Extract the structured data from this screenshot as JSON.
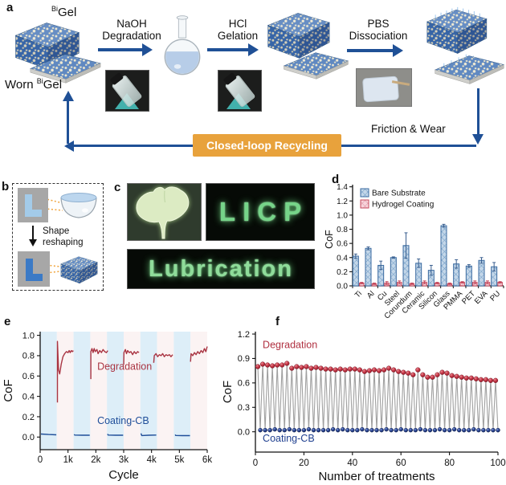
{
  "panel_labels": {
    "a": "a",
    "b": "b",
    "c": "c",
    "d": "d",
    "e": "e",
    "f": "f"
  },
  "panel_a": {
    "gel_sup": "Bi",
    "gel_base": "Gel",
    "worn_prefix": "Worn",
    "steps": {
      "s1a": "NaOH",
      "s1b": "Degradation",
      "s2a": "HCl",
      "s2b": "Gelation",
      "s3a": "PBS",
      "s3b": "Dissociation"
    },
    "banner": "Closed-loop Recycling",
    "friction": "Friction & Wear",
    "colors": {
      "arrow_blue": "#1f5096",
      "banner_orange": "#e8a23c",
      "gel_blue": "#3d6fb4",
      "gel_cream": "#e9e2c4"
    }
  },
  "panel_b": {
    "letter_top": "L",
    "letter_bottom": "L",
    "caption1": "Shape",
    "caption2": "reshaping",
    "colors": {
      "letter_top": "#a3cbe9",
      "letter_bottom": "#3b7ac6",
      "leader_orange": "#f0a43c"
    }
  },
  "panel_c": {
    "licp": "LICP",
    "lubrication": "Lubrication",
    "glow_green": "#8fdc9a"
  },
  "chart_data": [
    {
      "id": "d",
      "type": "bar",
      "ylabel": "CoF",
      "ylim": [
        0,
        1.4
      ],
      "yticks": [
        0,
        0.2,
        0.4,
        0.6,
        0.8,
        1.0,
        1.2,
        1.4
      ],
      "categories": [
        "Ti",
        "Al",
        "Cu",
        "Steel",
        "Corundum",
        "Ceramic",
        "Silicon",
        "Glass",
        "PMMA",
        "PET",
        "EVA",
        "PU"
      ],
      "series": [
        {
          "name": "Bare Substrate",
          "color": "#c3d6e8",
          "edge": "#3a6aa0",
          "err_color": "#3a5f8f",
          "values": [
            0.42,
            0.53,
            0.29,
            0.4,
            0.57,
            0.32,
            0.22,
            0.85,
            0.31,
            0.28,
            0.36,
            0.27
          ],
          "errors": [
            0.03,
            0.02,
            0.06,
            0.01,
            0.18,
            0.06,
            0.07,
            0.02,
            0.06,
            0.02,
            0.04,
            0.06
          ]
        },
        {
          "name": "Hydrogel Coating",
          "color": "#f7d3da",
          "edge": "#c4485c",
          "err_color": "#c4485c",
          "values": [
            0.04,
            0.03,
            0.04,
            0.05,
            0.03,
            0.05,
            0.04,
            0.03,
            0.05,
            0.05,
            0.05,
            0.05
          ],
          "errors": [
            0.01,
            0.01,
            0.02,
            0.02,
            0.01,
            0.02,
            0.01,
            0.01,
            0.01,
            0.02,
            0.02,
            0.01
          ]
        }
      ],
      "legend_position": "top-left",
      "grid": false
    },
    {
      "id": "e",
      "type": "line",
      "xlabel": "Cycle",
      "ylabel": "CoF",
      "xlim": [
        0,
        6000
      ],
      "ylim": [
        -0.12,
        1.04
      ],
      "xticks": [
        {
          "v": 0,
          "label": "0"
        },
        {
          "v": 1000,
          "label": "1k"
        },
        {
          "v": 2000,
          "label": "2k"
        },
        {
          "v": 3000,
          "label": "3k"
        },
        {
          "v": 4000,
          "label": "4k"
        },
        {
          "v": 5000,
          "label": "5k"
        },
        {
          "v": 6000,
          "label": "6k"
        }
      ],
      "yticks": [
        0,
        0.2,
        0.4,
        0.6,
        0.8,
        1.0
      ],
      "bands": {
        "period": 600,
        "colors": [
          "#ddeef8",
          "#fbf3f3"
        ]
      },
      "series": [
        {
          "name": "Degradation",
          "color": "#a93442",
          "segments": [
            [
              [
                620,
                0.34
              ],
              [
                620,
                0.94
              ],
              [
                640,
                0.8
              ],
              [
                660,
                0.66
              ],
              [
                700,
                0.62
              ],
              [
                760,
                0.72
              ],
              [
                820,
                0.79
              ],
              [
                880,
                0.82
              ],
              [
                940,
                0.84
              ],
              [
                1000,
                0.83
              ],
              [
                1040,
                0.85
              ],
              [
                1080,
                0.83
              ],
              [
                1120,
                0.85
              ],
              [
                1160,
                0.84
              ],
              [
                1190,
                0.85
              ]
            ],
            [
              [
                1820,
                0.57
              ],
              [
                1820,
                0.84
              ],
              [
                1860,
                0.87
              ],
              [
                1900,
                0.83
              ],
              [
                1940,
                0.87
              ],
              [
                1980,
                0.84
              ],
              [
                2040,
                0.86
              ],
              [
                2080,
                0.82
              ],
              [
                2140,
                0.85
              ],
              [
                2200,
                0.83
              ],
              [
                2260,
                0.86
              ],
              [
                2320,
                0.84
              ],
              [
                2380,
                0.83
              ],
              [
                2430,
                0.85
              ]
            ],
            [
              [
                3000,
                0.71
              ],
              [
                3010,
                0.83
              ],
              [
                3060,
                0.86
              ],
              [
                3100,
                0.82
              ],
              [
                3140,
                0.85
              ],
              [
                3200,
                0.83
              ],
              [
                3260,
                0.84
              ],
              [
                3320,
                0.81
              ],
              [
                3380,
                0.84
              ],
              [
                3440,
                0.82
              ],
              [
                3500,
                0.84
              ],
              [
                3550,
                0.83
              ]
            ],
            [
              [
                4080,
                0.73
              ],
              [
                4100,
                0.8
              ],
              [
                4160,
                0.82
              ],
              [
                4220,
                0.79
              ],
              [
                4280,
                0.81
              ],
              [
                4340,
                0.8
              ],
              [
                4400,
                0.82
              ],
              [
                4460,
                0.79
              ],
              [
                4520,
                0.81
              ],
              [
                4580,
                0.8
              ],
              [
                4640,
                0.81
              ],
              [
                4700,
                0.79
              ],
              [
                4760,
                0.81
              ]
            ],
            [
              [
                5400,
                0.74
              ],
              [
                5420,
                0.82
              ],
              [
                5480,
                0.8
              ],
              [
                5540,
                0.83
              ],
              [
                5600,
                0.81
              ],
              [
                5660,
                0.84
              ],
              [
                5720,
                0.82
              ],
              [
                5780,
                0.85
              ],
              [
                5840,
                0.83
              ],
              [
                5900,
                0.87
              ],
              [
                5950,
                0.84
              ],
              [
                6000,
                0.89
              ]
            ]
          ]
        },
        {
          "name": "Coating-CB",
          "color": "#1f4e99",
          "segments": [
            [
              [
                30,
                0.03
              ],
              [
                300,
                0.025
              ],
              [
                580,
                0.022
              ]
            ],
            [
              [
                1220,
                0.026
              ],
              [
                1240,
                0.02
              ],
              [
                1500,
                0.018
              ],
              [
                1780,
                0.018
              ]
            ],
            [
              [
                2420,
                0.03
              ],
              [
                2440,
                0.02
              ],
              [
                2700,
                0.018
              ],
              [
                2980,
                0.018
              ]
            ],
            [
              [
                3620,
                0.036
              ],
              [
                3650,
                0.015
              ],
              [
                3900,
                0.018
              ],
              [
                4170,
                0.02
              ]
            ],
            [
              [
                4850,
                0.024
              ],
              [
                4870,
                0.016
              ],
              [
                5100,
                0.014
              ],
              [
                5380,
                0.014
              ]
            ]
          ]
        }
      ],
      "annotations": [
        {
          "text": "Degradation",
          "color": "#a93442",
          "x": 2050,
          "y": 0.66
        },
        {
          "text": "Coating-CB",
          "color": "#1f4e99",
          "x": 2050,
          "y": 0.13
        }
      ]
    },
    {
      "id": "f",
      "type": "scatter-line",
      "xlabel": "Number of treatments",
      "ylabel": "CoF",
      "xlim": [
        0,
        100
      ],
      "ylim": [
        -0.25,
        1.23
      ],
      "xticks": [
        {
          "v": 0,
          "label": "0"
        },
        {
          "v": 20,
          "label": "20"
        },
        {
          "v": 40,
          "label": "40"
        },
        {
          "v": 60,
          "label": "60"
        },
        {
          "v": 80,
          "label": "80"
        },
        {
          "v": 100,
          "label": "100"
        }
      ],
      "yticks": [
        0,
        0.3,
        0.6,
        0.9,
        1.2
      ],
      "line_color": "#a0a0a0",
      "series": [
        {
          "name": "Degradation",
          "color": "#c03040",
          "x": [
            1,
            3,
            5,
            7,
            9,
            11,
            13,
            15,
            17,
            19,
            21,
            23,
            25,
            27,
            29,
            31,
            33,
            35,
            37,
            39,
            41,
            43,
            45,
            47,
            49,
            51,
            53,
            55,
            57,
            59,
            61,
            63,
            65,
            67,
            69,
            71,
            73,
            75,
            77,
            79,
            81,
            83,
            85,
            87,
            89,
            91,
            93,
            95,
            97,
            99
          ],
          "values": [
            0.8,
            0.83,
            0.82,
            0.81,
            0.82,
            0.82,
            0.84,
            0.78,
            0.8,
            0.79,
            0.8,
            0.78,
            0.79,
            0.78,
            0.77,
            0.77,
            0.76,
            0.77,
            0.76,
            0.77,
            0.77,
            0.76,
            0.74,
            0.75,
            0.76,
            0.75,
            0.76,
            0.78,
            0.76,
            0.74,
            0.73,
            0.72,
            0.7,
            0.76,
            0.7,
            0.67,
            0.67,
            0.7,
            0.73,
            0.72,
            0.69,
            0.68,
            0.67,
            0.66,
            0.66,
            0.65,
            0.64,
            0.64,
            0.63,
            0.63
          ]
        },
        {
          "name": "Coating-CB",
          "color": "#1e3f8f",
          "x": [
            2,
            4,
            6,
            8,
            10,
            12,
            14,
            16,
            18,
            20,
            22,
            24,
            26,
            28,
            30,
            32,
            34,
            36,
            38,
            40,
            42,
            44,
            46,
            48,
            50,
            52,
            54,
            56,
            58,
            60,
            62,
            64,
            66,
            68,
            70,
            72,
            74,
            76,
            78,
            80,
            82,
            84,
            86,
            88,
            90,
            92,
            94,
            96,
            98,
            100
          ],
          "values": [
            0.02,
            0.02,
            0.02,
            0.03,
            0.02,
            0.02,
            0.03,
            0.02,
            0.02,
            0.02,
            0.03,
            0.02,
            0.02,
            0.02,
            0.02,
            0.03,
            0.02,
            0.03,
            0.02,
            0.02,
            0.02,
            0.03,
            0.02,
            0.02,
            0.02,
            0.02,
            0.03,
            0.02,
            0.02,
            0.03,
            0.02,
            0.02,
            0.02,
            0.03,
            0.02,
            0.02,
            0.02,
            0.03,
            0.02,
            0.02,
            0.03,
            0.02,
            0.02,
            0.02,
            0.03,
            0.02,
            0.02,
            0.02,
            0.02,
            0.02
          ]
        }
      ],
      "annotations": [
        {
          "text": "Degradation",
          "color": "#b03040",
          "x": 3,
          "y": 1.03
        },
        {
          "text": "Coating-CB",
          "color": "#1e3f8f",
          "x": 3,
          "y": -0.12
        }
      ]
    }
  ]
}
